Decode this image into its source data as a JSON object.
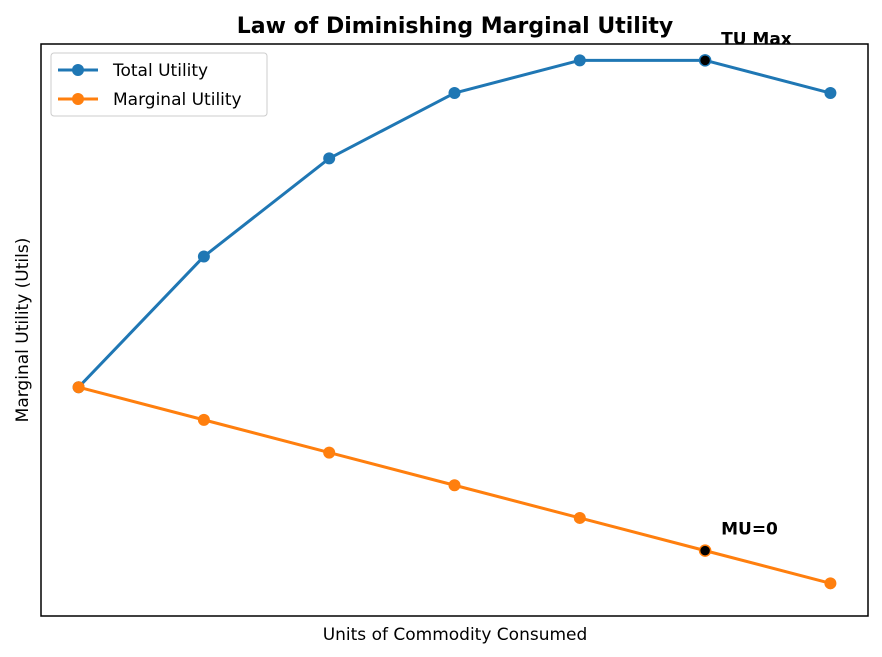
{
  "chart_data": {
    "type": "line",
    "title": "Law of Diminishing Marginal Utility",
    "xlabel": "Units of Commodity Consumed",
    "ylabel": "Marginal Utility (Utils)",
    "x": [
      1,
      2,
      3,
      4,
      5,
      6,
      7
    ],
    "xlim": [
      0.7,
      7.3
    ],
    "ylim": [
      -2.0,
      15.5
    ],
    "grid": false,
    "legend_position": "upper-left",
    "series": [
      {
        "name": "Total Utility",
        "color": "#1f77b4",
        "values": [
          5,
          9,
          12,
          14,
          15,
          15,
          14
        ]
      },
      {
        "name": "Marginal Utility",
        "color": "#ff7f0e",
        "values": [
          5,
          4,
          3,
          2,
          1,
          0,
          -1
        ]
      }
    ],
    "annotations": [
      {
        "text": "TU Max",
        "series": 0,
        "point_index": 5,
        "marker_color": "#000000"
      },
      {
        "text": "MU=0",
        "series": 1,
        "point_index": 5,
        "marker_color": "#000000"
      }
    ]
  }
}
